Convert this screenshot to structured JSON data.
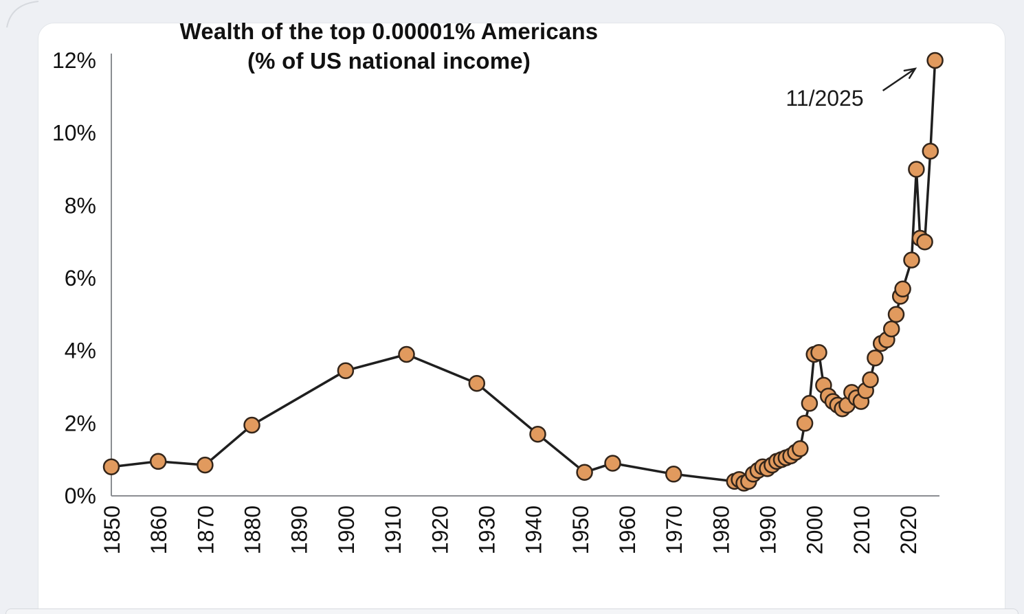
{
  "chart_data": {
    "type": "line",
    "title_line1": "Wealth of the top 0.00001% Americans",
    "title_line2": "(% of US national income)",
    "xlabel": "",
    "ylabel": "",
    "xlim": [
      1850,
      2026
    ],
    "ylim": [
      0,
      12
    ],
    "grid": false,
    "legend_position": "none",
    "x_ticks": [
      "1850",
      "1860",
      "1870",
      "1880",
      "1890",
      "1900",
      "1910",
      "1920",
      "1930",
      "1940",
      "1950",
      "1960",
      "1970",
      "1980",
      "1990",
      "2000",
      "2010",
      "2020"
    ],
    "x_tick_values": [
      1850,
      1860,
      1870,
      1880,
      1890,
      1900,
      1910,
      1920,
      1930,
      1940,
      1950,
      1960,
      1970,
      1980,
      1990,
      2000,
      2010,
      2020
    ],
    "y_ticks": [
      "0%",
      "2%",
      "4%",
      "6%",
      "8%",
      "10%",
      "12%"
    ],
    "y_tick_values": [
      0,
      2,
      4,
      6,
      8,
      10,
      12
    ],
    "series": [
      {
        "name": "Top 0.00001% wealth (% of US national income)",
        "points": [
          [
            1850,
            0.8
          ],
          [
            1860,
            0.95
          ],
          [
            1870,
            0.85
          ],
          [
            1880,
            1.95
          ],
          [
            1900,
            3.45
          ],
          [
            1913,
            3.9
          ],
          [
            1928,
            3.1
          ],
          [
            1941,
            1.7
          ],
          [
            1951,
            0.65
          ],
          [
            1957,
            0.9
          ],
          [
            1970,
            0.6
          ],
          [
            1983,
            0.4
          ],
          [
            1984,
            0.45
          ],
          [
            1985,
            0.35
          ],
          [
            1986,
            0.4
          ],
          [
            1987,
            0.6
          ],
          [
            1988,
            0.7
          ],
          [
            1989,
            0.8
          ],
          [
            1990,
            0.75
          ],
          [
            1991,
            0.85
          ],
          [
            1992,
            0.95
          ],
          [
            1993,
            1.0
          ],
          [
            1994,
            1.05
          ],
          [
            1995,
            1.1
          ],
          [
            1996,
            1.2
          ],
          [
            1997,
            1.3
          ],
          [
            1998,
            2.0
          ],
          [
            1999,
            2.55
          ],
          [
            2000,
            3.9
          ],
          [
            2001,
            3.95
          ],
          [
            2002,
            3.05
          ],
          [
            2003,
            2.75
          ],
          [
            2004,
            2.6
          ],
          [
            2005,
            2.5
          ],
          [
            2006,
            2.4
          ],
          [
            2007,
            2.5
          ],
          [
            2008,
            2.85
          ],
          [
            2009,
            2.7
          ],
          [
            2010,
            2.6
          ],
          [
            2011,
            2.9
          ],
          [
            2012,
            3.2
          ],
          [
            2013,
            3.8
          ],
          [
            2014.3,
            4.2
          ],
          [
            2015.5,
            4.3
          ],
          [
            2016.5,
            4.6
          ],
          [
            2017.5,
            5.0
          ],
          [
            2018.4,
            5.5
          ],
          [
            2018.9,
            5.7
          ],
          [
            2020.8,
            6.5
          ],
          [
            2021.8,
            9.0
          ],
          [
            2022.6,
            7.1
          ],
          [
            2023.6,
            7.0
          ],
          [
            2024.8,
            9.5
          ],
          [
            2025.8,
            12.0
          ]
        ]
      }
    ],
    "annotation": {
      "label": "11/2025",
      "target_year": 2025.8,
      "target_value": 12.0
    },
    "colors": {
      "marker_fill": "#E19A5E",
      "marker_stroke": "#33251A",
      "line": "#1F1F1F",
      "axis": "#8A8D91",
      "text": "#111111",
      "card_background": "#FFFFFF",
      "page_background": "#EEF0F4"
    }
  }
}
